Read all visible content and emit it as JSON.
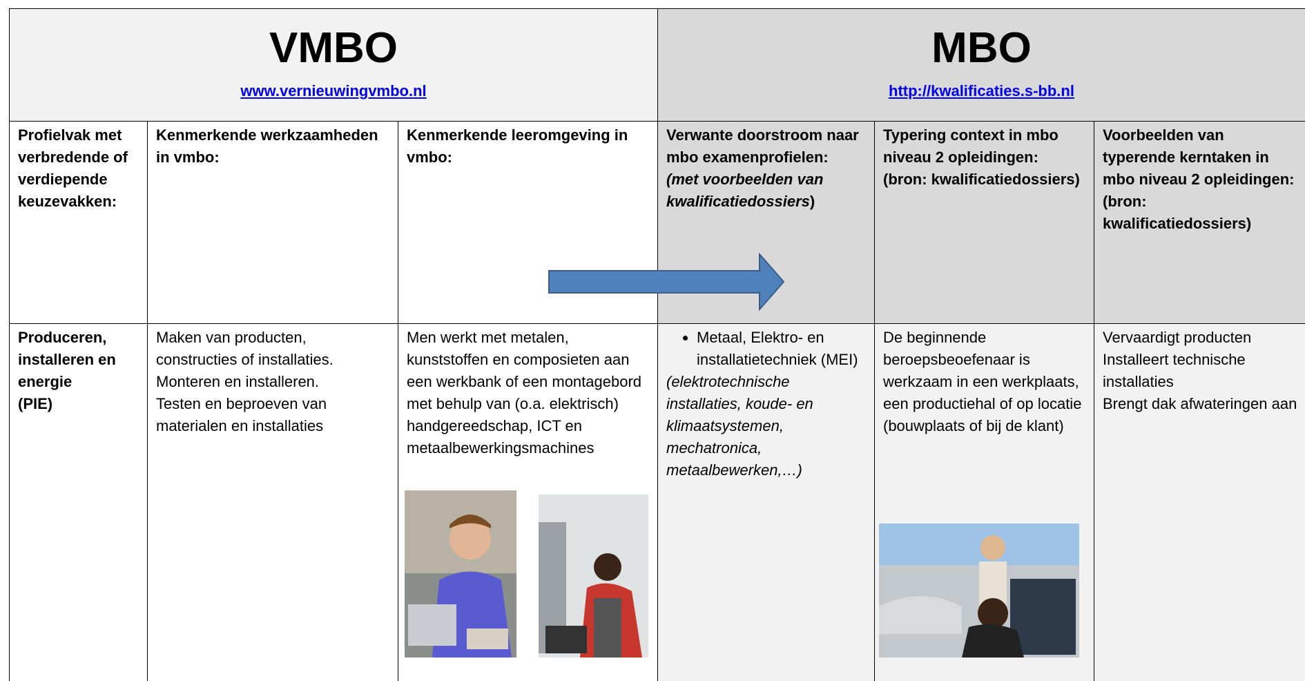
{
  "header": {
    "vmbo": {
      "title": "VMBO",
      "link": "www.vernieuwingvmbo.nl"
    },
    "mbo": {
      "title": "MBO",
      "link": "http://kwalificaties.s-bb.nl"
    }
  },
  "table": {
    "columns": [
      [
        "Profielvak met verbredende of verdiepende keuzevakken:"
      ],
      [
        "Kenmerkende werkzaamheden in vmbo:"
      ],
      [
        "Kenmerkende leeromgeving in vmbo:"
      ],
      [
        "Verwante doorstroom naar mbo examenprofielen:",
        "(met voorbeelden van kwalificatiedossiers",
        ")"
      ],
      [
        "Typering context in mbo niveau 2 opleidingen:",
        "(bron: kwalificatiedossiers)"
      ],
      [
        "Voorbeelden van",
        "typerende kerntaken in",
        "mbo niveau 2 opleidingen:",
        "(bron:",
        "kwalificatiedossiers)"
      ]
    ],
    "rows": [
      [
        [
          "Produceren, installeren en energie",
          "(PIE)"
        ],
        [
          "Maken van producten, constructies of installaties.",
          "Monteren en installeren.",
          "Testen en beproeven van materialen en installaties"
        ],
        [
          "Men werkt met metalen, kunststoffen en composieten aan een werkbank of een montagebord met behulp van (o.a. elektrisch) handgereedschap, ICT en metaalbewerkingsmachines"
        ],
        [
          "Metaal, Elektro- en installatietechniek (MEI)",
          "(elektrotechnische installaties, koude- en klimaatsystemen, mechatronica, metaalbewerken,…)"
        ],
        [
          "De beginnende beroepsbeoefenaar is werkzaam in een werkplaats, een productiehal of op locatie (bouwplaats of bij de klant)"
        ],
        [
          "Vervaardigt producten",
          "Installeert technische installaties",
          "Brengt dak afwateringen aan"
        ]
      ]
    ]
  }
}
